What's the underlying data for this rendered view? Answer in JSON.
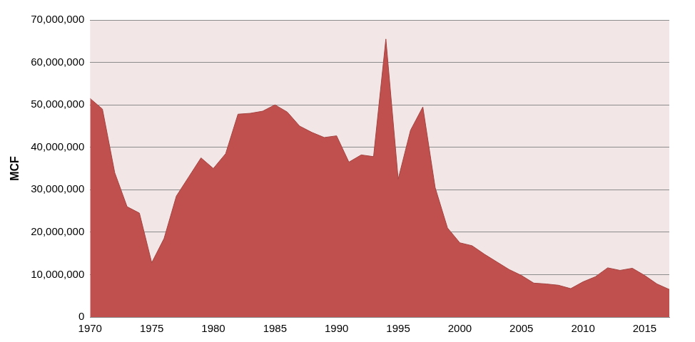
{
  "chart_data": {
    "type": "area",
    "y_label": "MCF",
    "x": [
      1970,
      1971,
      1972,
      1973,
      1974,
      1975,
      1976,
      1977,
      1978,
      1979,
      1980,
      1981,
      1982,
      1983,
      1984,
      1985,
      1986,
      1987,
      1988,
      1989,
      1990,
      1991,
      1992,
      1993,
      1994,
      1995,
      1996,
      1997,
      1998,
      1999,
      2000,
      2001,
      2002,
      2003,
      2004,
      2005,
      2006,
      2007,
      2008,
      2009,
      2010,
      2011,
      2012,
      2013,
      2014,
      2015,
      2016,
      2017
    ],
    "values": [
      51500000,
      49000000,
      34000000,
      26000000,
      24500000,
      12800000,
      18500000,
      28500000,
      33000000,
      37500000,
      35000000,
      38500000,
      47800000,
      48000000,
      48500000,
      50000000,
      48300000,
      45000000,
      43500000,
      42300000,
      42700000,
      36500000,
      38200000,
      37800000,
      65500000,
      32500000,
      44000000,
      49500000,
      30500000,
      21000000,
      17500000,
      16800000,
      14800000,
      13000000,
      11200000,
      9800000,
      8000000,
      7800000,
      7500000,
      6700000,
      8300000,
      9500000,
      11600000,
      11000000,
      11500000,
      9800000,
      7800000,
      6500000
    ],
    "color": "#c0504d",
    "xlim": [
      1970,
      2017
    ],
    "xticks": [
      1970,
      1975,
      1980,
      1985,
      1990,
      1995,
      2000,
      2005,
      2010,
      2015
    ],
    "ylim": [
      0,
      70000000
    ],
    "yticks": [
      0,
      {
        "value": 10000000,
        "label": "10,000,000"
      },
      {
        "value": 20000000,
        "label": "20,000,000"
      },
      {
        "value": 30000000,
        "label": "30,000,000"
      },
      {
        "value": 40000000,
        "label": "40,000,000"
      },
      {
        "value": 50000000,
        "label": "50,000,000"
      },
      {
        "value": 60000000,
        "label": "60,000,000"
      },
      {
        "value": 70000000,
        "label": "70,000,000"
      }
    ],
    "grid": true
  }
}
